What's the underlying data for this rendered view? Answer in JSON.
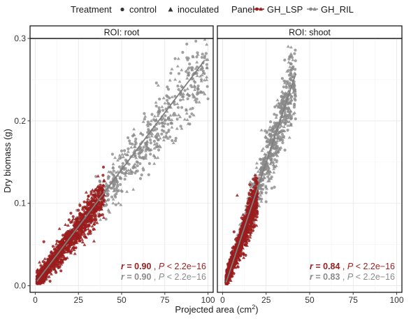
{
  "chart_data": {
    "type": "scatter",
    "title": "",
    "xlabel": "Projected area (cm",
    "xlabel_sup": "2",
    "xlabel_tail": ")",
    "ylabel": "Dry biomass (g)",
    "xlim": [
      -3,
      103
    ],
    "ylim": [
      -0.008,
      0.3
    ],
    "x_ticks": [
      0,
      25,
      50,
      75,
      100
    ],
    "y_ticks": [
      0.0,
      0.1,
      0.2,
      0.3
    ],
    "x_tick_labels": [
      "0",
      "25",
      "50",
      "75",
      "100"
    ],
    "y_tick_labels": [
      "0.0",
      "0.1",
      "0.2",
      "0.3"
    ],
    "grid": true,
    "legend": {
      "placement": "top",
      "treatment_title": "Treatment",
      "treatment_items": [
        "control",
        "inoculated"
      ],
      "panel_title": "Panel",
      "panel_items": [
        "GH_LSP",
        "GH_RIL"
      ]
    },
    "colors": {
      "GH_LSP": "#9b1c1c",
      "GH_RIL": "#8a8a8a"
    },
    "facets": [
      {
        "strip": "ROI: root",
        "series": [
          {
            "name": "GH_LSP",
            "x_range": [
              1,
              40
            ],
            "slope": 0.00268,
            "intercept": 0.0028,
            "n": 1100
          },
          {
            "name": "GH_RIL",
            "x_range": [
              1,
              100
            ],
            "slope": 0.00268,
            "intercept": 0.0032,
            "n": 750
          }
        ],
        "fit_line": {
          "from": [
            1,
            0.0055
          ],
          "to": [
            98,
            0.2735
          ]
        },
        "stats": [
          {
            "series": "GH_LSP",
            "r_label": "r",
            "r_value": "= 0.90",
            "sep": ",",
            "p_label": "P",
            "p_value": "< 2.2e−16"
          },
          {
            "series": "GH_RIL",
            "r_label": "r",
            "r_value": "= 0.90",
            "sep": ",",
            "p_label": "P",
            "p_value": "< 2.2e−16"
          }
        ]
      },
      {
        "strip": "ROI: shoot",
        "series": [
          {
            "name": "GH_LSP",
            "x_range": [
              2,
              20
            ],
            "slope": 0.00575,
            "intercept": -0.005,
            "n": 1100
          },
          {
            "name": "GH_RIL",
            "x_range": [
              8,
              42
            ],
            "slope": 0.0062,
            "intercept": -0.007,
            "n": 800
          }
        ],
        "fit_line": {
          "from": [
            2,
            0.004
          ],
          "to": [
            42,
            0.257
          ]
        },
        "stats": [
          {
            "series": "GH_LSP",
            "r_label": "r",
            "r_value": "= 0.84",
            "sep": ",",
            "p_label": "P",
            "p_value": "< 2.2e−16"
          },
          {
            "series": "GH_RIL",
            "r_label": "r",
            "r_value": "= 0.83",
            "sep": ",",
            "p_label": "P",
            "p_value": "< 2.2e−16"
          }
        ]
      }
    ]
  }
}
